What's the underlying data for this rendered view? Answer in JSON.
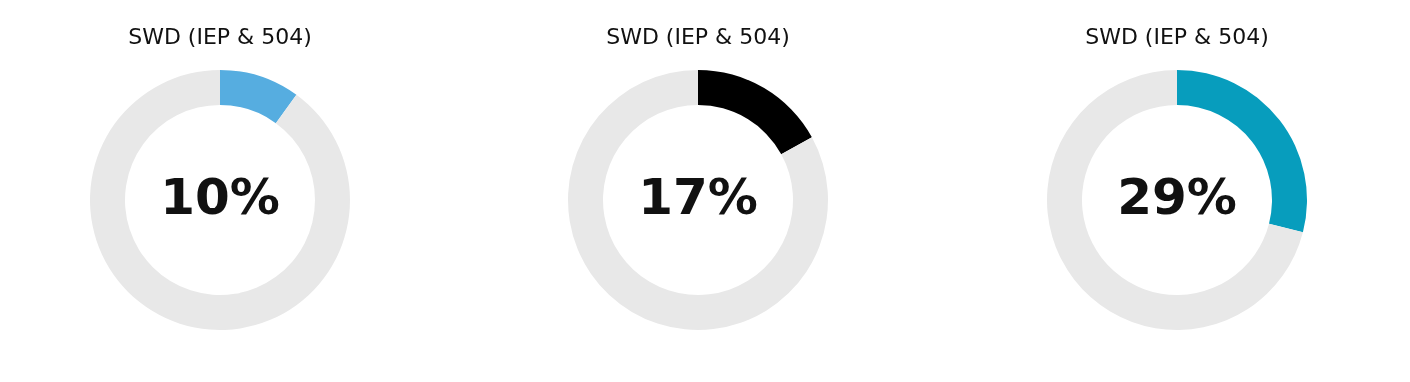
{
  "chart_data": [
    {
      "type": "donut",
      "title": "SWD (IEP & 504)",
      "categories": [
        null,
        null
      ],
      "values": [
        10,
        90
      ],
      "colors": [
        "#56ade0",
        "#e8e8e8"
      ],
      "annotations": [
        "10%"
      ]
    },
    {
      "type": "donut",
      "title": "SWD (IEP & 504)",
      "categories": [
        null,
        null
      ],
      "values": [
        17,
        83
      ],
      "colors": [
        "#000000",
        "#e8e8e8"
      ],
      "annotations": [
        "17%"
      ]
    },
    {
      "type": "donut",
      "title": "SWD (IEP & 504)",
      "categories": [
        null,
        null
      ],
      "values": [
        29,
        71
      ],
      "colors": [
        "#079dbd",
        "#e8e8e8"
      ],
      "annotations": [
        "29%"
      ]
    }
  ]
}
